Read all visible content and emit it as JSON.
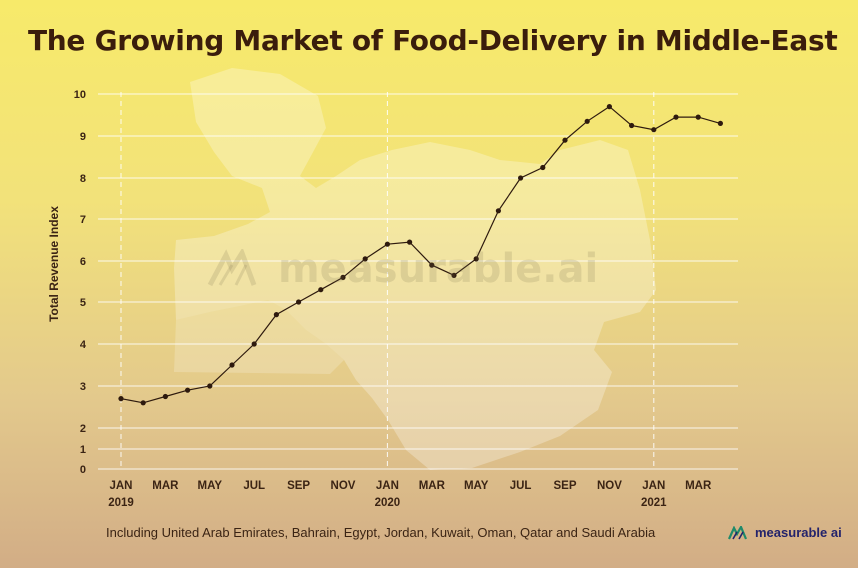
{
  "title": "The Growing Market of Food-Delivery in Middle-East",
  "footnote": "Including United Arab Emirates, Bahrain, Egypt, Jordan, Kuwait, Oman, Qatar and Saudi Arabia",
  "brand": {
    "name": "measurable ai",
    "logo_icon": "measurable-ai-logo-icon"
  },
  "watermark": "measurable.ai",
  "background_image": "middle-east-map",
  "colors": {
    "line": "#2e1a0e",
    "grid": "#ffffff",
    "title": "#3a1d0c",
    "brand": "#23236b"
  },
  "chart_data": {
    "type": "line",
    "ylabel": "Total Revenue Index",
    "xlabel": "",
    "ylim": [
      0,
      10
    ],
    "yticks": [
      0,
      1,
      2,
      3,
      4,
      5,
      6,
      7,
      8,
      9,
      10
    ],
    "grid": true,
    "x": [
      "2019-01",
      "2019-02",
      "2019-03",
      "2019-04",
      "2019-05",
      "2019-06",
      "2019-07",
      "2019-08",
      "2019-09",
      "2019-10",
      "2019-11",
      "2019-12",
      "2020-01",
      "2020-02",
      "2020-03",
      "2020-04",
      "2020-05",
      "2020-06",
      "2020-07",
      "2020-08",
      "2020-09",
      "2020-10",
      "2020-11",
      "2020-12",
      "2021-01",
      "2021-02",
      "2021-03",
      "2021-04"
    ],
    "xtick_labels": [
      {
        "month": "JAN",
        "year": "2019"
      },
      {
        "month": "MAR",
        "year": ""
      },
      {
        "month": "MAY",
        "year": ""
      },
      {
        "month": "JUL",
        "year": ""
      },
      {
        "month": "SEP",
        "year": ""
      },
      {
        "month": "NOV",
        "year": ""
      },
      {
        "month": "JAN",
        "year": "2020"
      },
      {
        "month": "MAR",
        "year": ""
      },
      {
        "month": "MAY",
        "year": ""
      },
      {
        "month": "JUL",
        "year": ""
      },
      {
        "month": "SEP",
        "year": ""
      },
      {
        "month": "NOV",
        "year": ""
      },
      {
        "month": "JAN",
        "year": "2021"
      },
      {
        "month": "MAR",
        "year": ""
      }
    ],
    "year_markers": [
      "2019-01",
      "2020-01",
      "2021-01"
    ],
    "series": [
      {
        "values": [
          2.7,
          2.6,
          2.75,
          2.9,
          3.0,
          3.5,
          4.0,
          4.7,
          5.0,
          5.3,
          5.6,
          6.05,
          6.4,
          6.45,
          5.9,
          5.65,
          6.05,
          7.2,
          8.0,
          8.25,
          8.9,
          9.35,
          9.7,
          9.25,
          9.15,
          9.45,
          9.45,
          9.3
        ]
      }
    ]
  }
}
